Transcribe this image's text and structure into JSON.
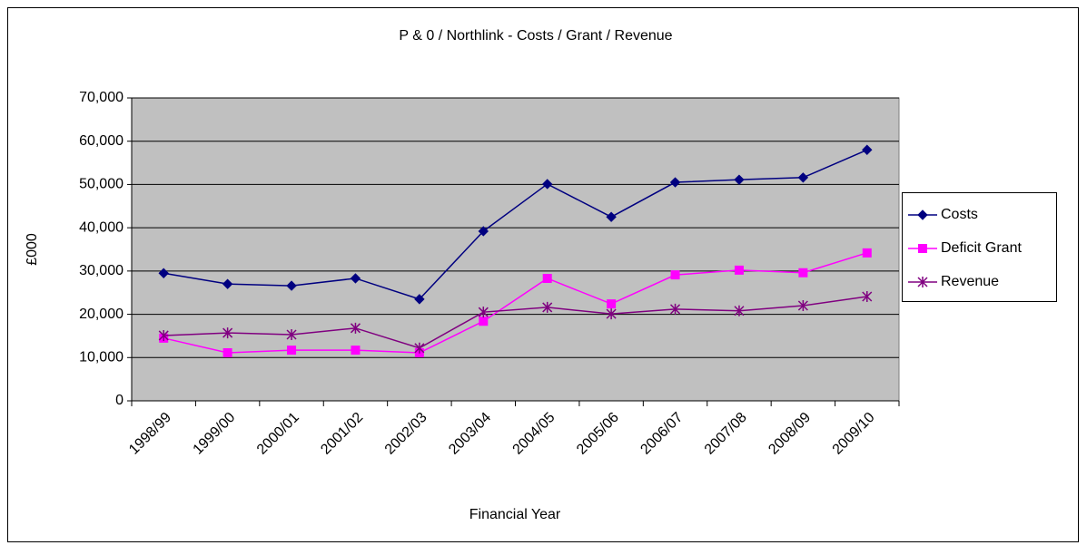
{
  "chart_data": {
    "type": "line",
    "title": "P & 0 / Northlink - Costs / Grant / Revenue",
    "x_label": "Financial Year",
    "y_label": "£000",
    "categories": [
      "1998/99",
      "1999/00",
      "2000/01",
      "2001/02",
      "2002/03",
      "2003/04",
      "2004/05",
      "2005/06",
      "2006/07",
      "2007/08",
      "2008/09",
      "2009/10"
    ],
    "series": [
      {
        "name": "Costs",
        "color": "#000080",
        "marker": "diamond",
        "values": [
          29500,
          27000,
          26600,
          28300,
          23500,
          39200,
          50100,
          42500,
          50500,
          51100,
          51600,
          58000
        ]
      },
      {
        "name": "Deficit Grant",
        "color": "#ff00ff",
        "marker": "square",
        "values": [
          14500,
          11100,
          11700,
          11700,
          11100,
          18400,
          28300,
          22400,
          29100,
          30200,
          29600,
          34200
        ]
      },
      {
        "name": "Revenue",
        "color": "#800080",
        "marker": "star",
        "values": [
          15100,
          15700,
          15300,
          16800,
          12200,
          20500,
          21600,
          20100,
          21200,
          20800,
          22000,
          24100
        ]
      }
    ],
    "ylim": [
      0,
      70000
    ],
    "yticks": [
      0,
      {
        "value": 10000,
        "label": "10,000"
      },
      {
        "value": 20000,
        "label": "20,000"
      },
      {
        "value": 30000,
        "label": "30,000"
      },
      {
        "value": 40000,
        "label": "40,000"
      },
      {
        "value": 50000,
        "label": "50,000"
      },
      {
        "value": 60000,
        "label": "60,000"
      },
      {
        "value": 70000,
        "label": "70,000"
      }
    ],
    "grid": true,
    "plot_background": "#c0c0c0",
    "legend": "right"
  }
}
